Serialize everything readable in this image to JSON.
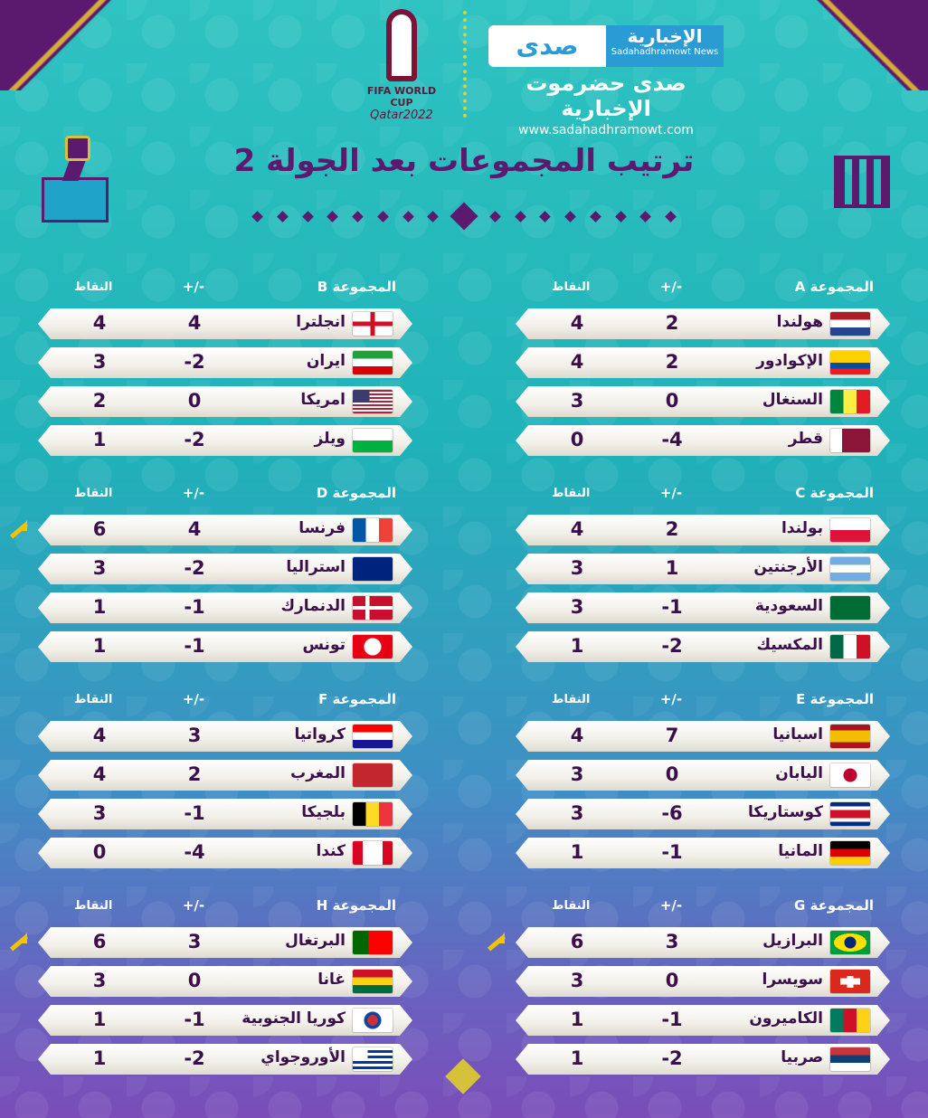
{
  "header": {
    "wc_line1": "FIFA WORLD CUP",
    "wc_line2": "Qatar2022",
    "news_mark": "صدى",
    "news_name": "الإخبارية",
    "news_name_en": "Sadahadhramowt News",
    "news_ar": "صدى حضرموت الإخبارية",
    "news_url": "www.sadahadhramowt.com"
  },
  "title": "ترتيب المجموعات بعد الجولة 2",
  "labels": {
    "diff": "+/-",
    "pts": "النقاط"
  },
  "colors": {
    "accent": "#5b1a6e",
    "gold": "#d6c23a",
    "arrow": "#f2c400"
  },
  "groups": [
    {
      "name": "المجموعة A",
      "teams": [
        {
          "name": "هولندا",
          "flag": "netherlands",
          "diff": "2",
          "pts": "4",
          "q": false
        },
        {
          "name": "الإكوادور",
          "flag": "ecuador",
          "diff": "2",
          "pts": "4",
          "q": false
        },
        {
          "name": "السنغال",
          "flag": "senegal",
          "diff": "0",
          "pts": "3",
          "q": false
        },
        {
          "name": "قطر",
          "flag": "qatar",
          "diff": "-4",
          "pts": "0",
          "q": false
        }
      ]
    },
    {
      "name": "المجموعة B",
      "teams": [
        {
          "name": "انجلترا",
          "flag": "england",
          "diff": "4",
          "pts": "4",
          "q": false
        },
        {
          "name": "ايران",
          "flag": "iran",
          "diff": "-2",
          "pts": "3",
          "q": false
        },
        {
          "name": "امريكا",
          "flag": "usa",
          "diff": "0",
          "pts": "2",
          "q": false
        },
        {
          "name": "ويلز",
          "flag": "wales",
          "diff": "-2",
          "pts": "1",
          "q": false
        }
      ]
    },
    {
      "name": "المجموعة C",
      "teams": [
        {
          "name": "بولندا",
          "flag": "poland",
          "diff": "2",
          "pts": "4",
          "q": false
        },
        {
          "name": "الأرجنتين",
          "flag": "argentina",
          "diff": "1",
          "pts": "3",
          "q": false
        },
        {
          "name": "السعودية",
          "flag": "saudi",
          "diff": "-1",
          "pts": "3",
          "q": false
        },
        {
          "name": "المكسيك",
          "flag": "mexico",
          "diff": "-2",
          "pts": "1",
          "q": false
        }
      ]
    },
    {
      "name": "المجموعة D",
      "teams": [
        {
          "name": "فرنسا",
          "flag": "france",
          "diff": "4",
          "pts": "6",
          "q": true
        },
        {
          "name": "استراليا",
          "flag": "australia",
          "diff": "-2",
          "pts": "3",
          "q": false
        },
        {
          "name": "الدنمارك",
          "flag": "denmark",
          "diff": "-1",
          "pts": "1",
          "q": false
        },
        {
          "name": "تونس",
          "flag": "tunisia",
          "diff": "-1",
          "pts": "1",
          "q": false
        }
      ]
    },
    {
      "name": "المجموعة E",
      "teams": [
        {
          "name": "اسبانيا",
          "flag": "spain",
          "diff": "7",
          "pts": "4",
          "q": false
        },
        {
          "name": "اليابان",
          "flag": "japan",
          "diff": "0",
          "pts": "3",
          "q": false
        },
        {
          "name": "كوستاريكا",
          "flag": "costarica",
          "diff": "-6",
          "pts": "3",
          "q": false
        },
        {
          "name": "المانيا",
          "flag": "germany",
          "diff": "-1",
          "pts": "1",
          "q": false
        }
      ]
    },
    {
      "name": "المجموعة F",
      "teams": [
        {
          "name": "كرواتيا",
          "flag": "croatia",
          "diff": "3",
          "pts": "4",
          "q": false
        },
        {
          "name": "المغرب",
          "flag": "morocco",
          "diff": "2",
          "pts": "4",
          "q": false
        },
        {
          "name": "بلجيكا",
          "flag": "belgium",
          "diff": "-1",
          "pts": "3",
          "q": false
        },
        {
          "name": "كندا",
          "flag": "canada",
          "diff": "-4",
          "pts": "0",
          "q": false
        }
      ]
    },
    {
      "name": "المجموعة G",
      "teams": [
        {
          "name": "البرازيل",
          "flag": "brazil",
          "diff": "3",
          "pts": "6",
          "q": true
        },
        {
          "name": "سويسرا",
          "flag": "switzerland",
          "diff": "0",
          "pts": "3",
          "q": false
        },
        {
          "name": "الكاميرون",
          "flag": "cameroon",
          "diff": "-1",
          "pts": "1",
          "q": false
        },
        {
          "name": "صربيا",
          "flag": "serbia",
          "diff": "-2",
          "pts": "1",
          "q": false
        }
      ]
    },
    {
      "name": "المجموعة H",
      "teams": [
        {
          "name": "البرتغال",
          "flag": "portugal",
          "diff": "3",
          "pts": "6",
          "q": true
        },
        {
          "name": "غانا",
          "flag": "ghana",
          "diff": "0",
          "pts": "3",
          "q": false
        },
        {
          "name": "كوريا الجنوبية",
          "flag": "korea",
          "diff": "-1",
          "pts": "1",
          "q": false
        },
        {
          "name": "الأوروجواي",
          "flag": "uruguay",
          "diff": "-2",
          "pts": "1",
          "q": false
        }
      ]
    }
  ]
}
